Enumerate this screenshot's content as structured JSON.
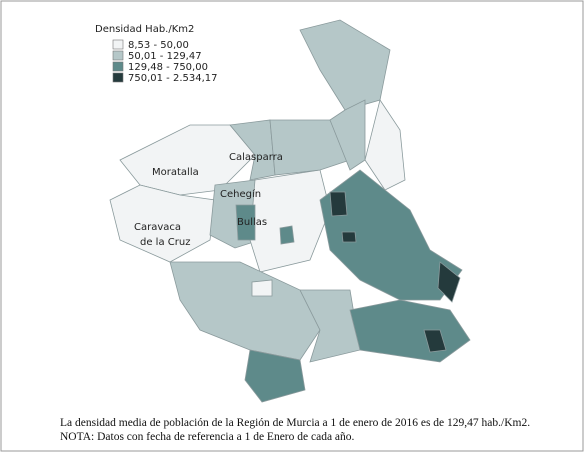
{
  "map": {
    "legend": {
      "title": "Densidad Hab./Km2",
      "items": [
        {
          "label": "8,53 - 50,00",
          "color": "#f2f4f5"
        },
        {
          "label": "50,01 - 129,47",
          "color": "#b5c7c8"
        },
        {
          "label": "129,48 - 750,00",
          "color": "#5e8a8a"
        },
        {
          "label": "750,01 - 2.534,17",
          "color": "#243a3c"
        }
      ]
    },
    "places": [
      "Moratalla",
      "Calasparra",
      "Cehegín",
      "Bullas",
      "Caravaca",
      "de la Cruz"
    ],
    "caption": [
      "La densidad media de población de la Región de Murcia a 1 de enero de 2016 es de 129,47 hab./Km2.",
      "NOTA: Datos con fecha de referencia a 1 de Enero de cada año."
    ]
  }
}
